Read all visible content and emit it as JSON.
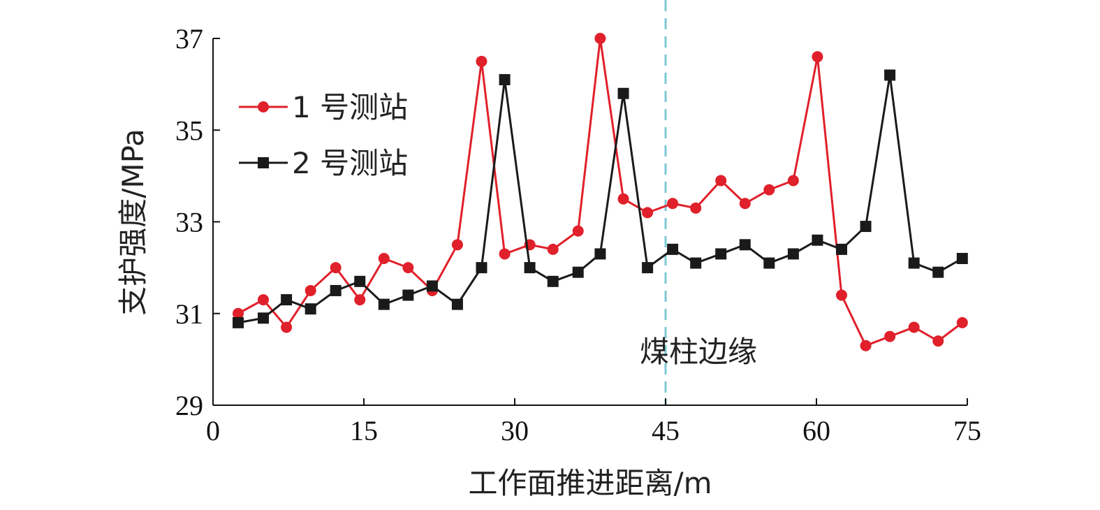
{
  "chart_data": {
    "type": "line",
    "xlabel": "工作面推进距离/m",
    "ylabel": "支护强度/MPa",
    "xlim": [
      0,
      75
    ],
    "ylim": [
      29,
      37
    ],
    "xticks": [
      0,
      15,
      30,
      45,
      60,
      75
    ],
    "yticks": [
      29,
      31,
      33,
      35,
      37
    ],
    "grid": false,
    "legend_position": "top-left",
    "annotation": {
      "text": "煤柱边缘",
      "x": 45
    },
    "series": [
      {
        "name": "1 号测站",
        "color": "#e0202a",
        "marker": "circle",
        "x": [
          2.5,
          5,
          7.3,
          9.7,
          12.2,
          14.6,
          17,
          19.4,
          21.8,
          24.3,
          26.7,
          29,
          31.5,
          33.8,
          36.3,
          38.5,
          40.8,
          43.2,
          45.7,
          48,
          50.5,
          52.9,
          55.3,
          57.7,
          60.1,
          62.5,
          64.9,
          67.3,
          69.7,
          72.1,
          74.5
        ],
        "values": [
          31.0,
          31.3,
          30.7,
          31.5,
          32.0,
          31.3,
          32.2,
          32.0,
          31.5,
          32.5,
          36.5,
          32.3,
          32.5,
          32.4,
          32.8,
          37.0,
          33.5,
          33.2,
          33.4,
          33.3,
          33.9,
          33.4,
          33.7,
          33.9,
          36.6,
          31.4,
          30.3,
          30.5,
          30.7,
          30.4,
          30.8
        ]
      },
      {
        "name": "2 号测站",
        "color": "#1a1a1a",
        "marker": "square",
        "x": [
          2.5,
          5,
          7.3,
          9.7,
          12.2,
          14.6,
          17,
          19.4,
          21.8,
          24.3,
          26.7,
          29,
          31.5,
          33.8,
          36.3,
          38.5,
          40.8,
          43.2,
          45.7,
          48,
          50.5,
          52.9,
          55.3,
          57.7,
          60.1,
          62.5,
          64.9,
          67.3,
          69.7,
          72.1,
          74.5
        ],
        "values": [
          30.8,
          30.9,
          31.3,
          31.1,
          31.5,
          31.7,
          31.2,
          31.4,
          31.6,
          31.2,
          32.0,
          36.1,
          32.0,
          31.7,
          31.9,
          32.3,
          35.8,
          32.0,
          32.4,
          32.1,
          32.3,
          32.5,
          32.1,
          32.3,
          32.6,
          32.4,
          32.9,
          36.2,
          32.1,
          31.9,
          32.2
        ]
      }
    ],
    "vline_color": "#7cc8d6"
  }
}
